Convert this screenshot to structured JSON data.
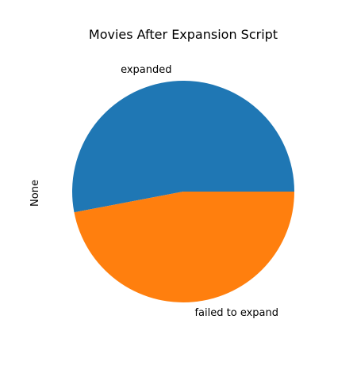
{
  "chart_data": {
    "type": "pie",
    "title": "Movies After Expansion Script",
    "ylabel": "None",
    "slices": [
      {
        "label": "expanded",
        "value": 53,
        "color": "#1f77b4"
      },
      {
        "label": "failed to expand",
        "value": 47,
        "color": "#ff7f0e"
      }
    ],
    "start_angle_deg": 0,
    "direction": "counterclockwise"
  }
}
